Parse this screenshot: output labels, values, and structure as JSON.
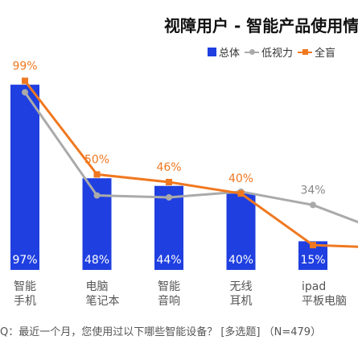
{
  "chart_data": {
    "type": "bar",
    "title": "视障用户 - 智能产品使用情",
    "categories": [
      "智能\n手机",
      "电脑\n笔记本",
      "智能\n音响",
      "无线\n耳机",
      "ipad\n平板电脑"
    ],
    "bar_series": {
      "name": "总体",
      "values": [
        97,
        48,
        44,
        40,
        15
      ],
      "labels": [
        "97%",
        "48%",
        "44%",
        "40%",
        "15%"
      ]
    },
    "line_series": [
      {
        "name": "低视力",
        "values": [
          93,
          39,
          38,
          41,
          34
        ],
        "labels": [
          "",
          "",
          "",
          "",
          "34%"
        ],
        "extends_right_to": 24
      },
      {
        "name": "全盲",
        "values": [
          99,
          50,
          46,
          40,
          13
        ],
        "labels": [
          "99%",
          "50%",
          "46%",
          "40%",
          ""
        ],
        "extends_right_to": 12
      }
    ],
    "ylim": [
      0,
      100
    ],
    "grid": false,
    "legend_position": "top-right",
    "colors": {
      "bar": "#1f3fe0",
      "low_vision": "#aaaaaa",
      "blind": "#f07820",
      "bar_label": "#ffffff",
      "blind_label": "#f07820",
      "low_vision_label": "#888888"
    }
  },
  "footnote": "Q：最近一个月，您使用过以下哪些智能设备？ [多选题] （N=479）",
  "legend": {
    "bar": "总体",
    "low_vision": "低视力",
    "blind": "全盲"
  }
}
